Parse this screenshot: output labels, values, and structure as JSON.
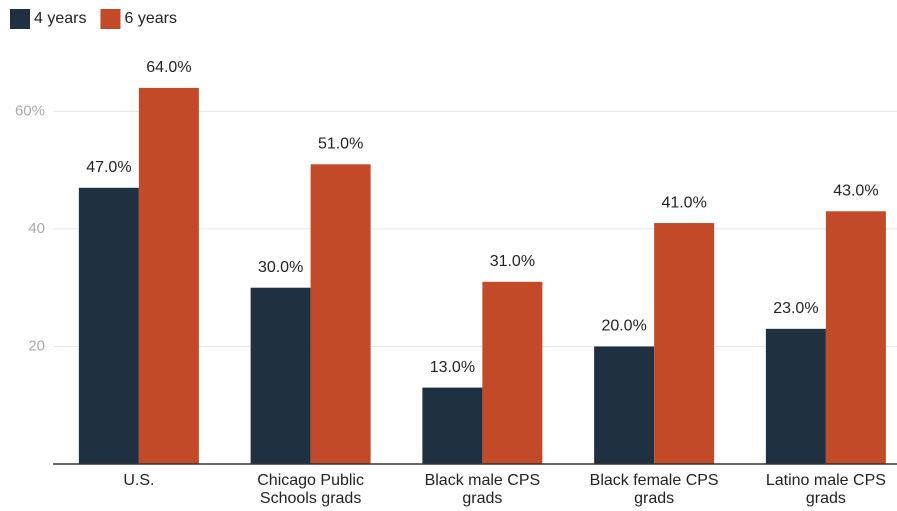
{
  "chart_data": {
    "type": "bar",
    "categories": [
      "U.S.",
      "Chicago Public Schools grads",
      "Black male CPS grads",
      "Black female CPS grads",
      "Latino male CPS grads"
    ],
    "series": [
      {
        "name": "4 years",
        "color": "#1f3140",
        "values": [
          47,
          30,
          13,
          20,
          23
        ],
        "value_labels": [
          "47.0%",
          "30.0%",
          "13.0%",
          "20.0%",
          "23.0%"
        ]
      },
      {
        "name": "6 years",
        "color": "#c24a28",
        "values": [
          64,
          51,
          31,
          41,
          43
        ],
        "value_labels": [
          "64.0%",
          "51.0%",
          "31.0%",
          "41.0%",
          "43.0%"
        ]
      }
    ],
    "ylim": [
      0,
      65
    ],
    "yticks": [
      20,
      40,
      {
        "value": 60,
        "label": "60%"
      }
    ],
    "grid": true,
    "legend": "top-left"
  }
}
